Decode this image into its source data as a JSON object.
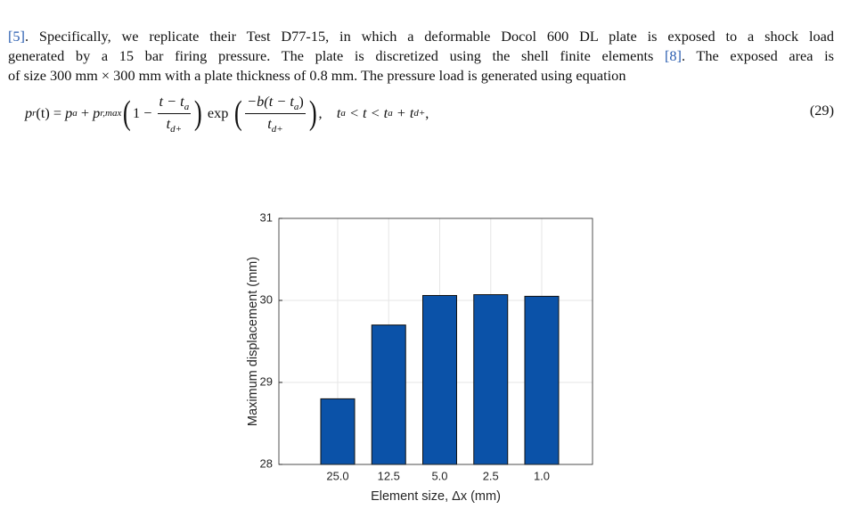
{
  "paragraph": {
    "lines": [
      [
        "[5]",
        ". Specifically, we replicate their Test D77-15, in which a deformable Docol 600 DL plate is exposed to a shock load"
      ],
      [
        "generated by a 15 bar firing pressure. The plate is discretized using the shell finite elements ",
        "[8]",
        ". The exposed area is"
      ],
      [
        "of size 300 mm × 300 mm with a plate thickness of 0.8 mm. The pressure load is generated using equation"
      ]
    ]
  },
  "equation": {
    "parts": [
      "p",
      "r",
      "(t) = ",
      "p",
      "a",
      " + ",
      "p",
      "r,max",
      "(",
      "1 − ",
      "t − t",
      "a",
      "t",
      "d+",
      ")",
      "exp",
      "(",
      "−b(t − t",
      "a",
      ")",
      "t",
      "d+",
      ")",
      ",",
      "t",
      "a",
      " < t < t",
      "a",
      " + t",
      "d+",
      ","
    ],
    "number": "(29)"
  },
  "chart_data": {
    "type": "bar",
    "categories": [
      "25.0",
      "12.5",
      "5.0",
      "2.5",
      "1.0"
    ],
    "values": [
      28.8,
      29.7,
      30.06,
      30.07,
      30.05
    ],
    "color": "#0b52a8",
    "ylim": [
      28,
      31
    ],
    "yticks": [
      28,
      29,
      30,
      31
    ],
    "grid": true,
    "xlabel": "Element size, Δx (mm)",
    "ylabel": "Maximum displacement (mm)"
  }
}
